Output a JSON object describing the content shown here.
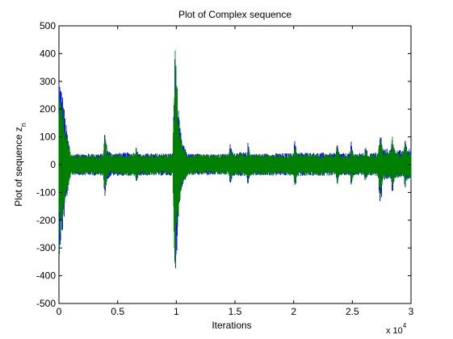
{
  "chart_data": {
    "type": "line",
    "title": "Plot of Complex sequence",
    "xlabel": "Iterations",
    "ylabel_main": "Plot of sequence z",
    "ylabel_subscript": "n",
    "x_exponent_base": "x 10",
    "x_exponent_power": "4",
    "xlim": [
      0,
      3
    ],
    "ylim": [
      -500,
      500
    ],
    "x_ticks": [
      {
        "value": 0,
        "label": "0"
      },
      {
        "value": 0.5,
        "label": "0.5"
      },
      {
        "value": 1,
        "label": "1"
      },
      {
        "value": 1.5,
        "label": "1.5"
      },
      {
        "value": 2,
        "label": "2"
      },
      {
        "value": 2.5,
        "label": "2.5"
      },
      {
        "value": 3,
        "label": "3"
      }
    ],
    "y_ticks": [
      {
        "value": 500,
        "label": "500"
      },
      {
        "value": 400,
        "label": "400"
      },
      {
        "value": 300,
        "label": "300"
      },
      {
        "value": 200,
        "label": "200"
      },
      {
        "value": 100,
        "label": "100"
      },
      {
        "value": 0,
        "label": "0"
      },
      {
        "value": -100,
        "label": "-100"
      },
      {
        "value": -200,
        "label": "-200"
      },
      {
        "value": -300,
        "label": "-300"
      },
      {
        "value": -400,
        "label": "-400"
      },
      {
        "value": -500,
        "label": "-500"
      }
    ],
    "grid": false,
    "series": [
      {
        "color": "#0000ff",
        "envelope": [
          [
            0,
            345,
            -330
          ],
          [
            0.03,
            260,
            -255
          ],
          [
            0.06,
            150,
            -140
          ],
          [
            0.1,
            40,
            -38
          ],
          [
            0.38,
            40,
            -40
          ],
          [
            0.39,
            130,
            -125
          ],
          [
            0.41,
            60,
            -55
          ],
          [
            0.45,
            42,
            -40
          ],
          [
            0.65,
            45,
            -42
          ],
          [
            0.66,
            75,
            -70
          ],
          [
            0.68,
            40,
            -40
          ],
          [
            0.97,
            42,
            -40
          ],
          [
            0.98,
            280,
            -270
          ],
          [
            0.99,
            430,
            -445
          ],
          [
            1.0,
            360,
            -350
          ],
          [
            1.02,
            180,
            -175
          ],
          [
            1.05,
            80,
            -78
          ],
          [
            1.1,
            40,
            -38
          ],
          [
            1.45,
            40,
            -38
          ],
          [
            1.46,
            85,
            -80
          ],
          [
            1.48,
            45,
            -42
          ],
          [
            1.6,
            45,
            -42
          ],
          [
            1.61,
            80,
            -78
          ],
          [
            1.63,
            40,
            -40
          ],
          [
            2.0,
            42,
            -40
          ],
          [
            2.01,
            100,
            -95
          ],
          [
            2.03,
            45,
            -42
          ],
          [
            2.36,
            42,
            -40
          ],
          [
            2.37,
            80,
            -78
          ],
          [
            2.39,
            42,
            -40
          ],
          [
            2.48,
            42,
            -40
          ],
          [
            2.49,
            85,
            -80
          ],
          [
            2.51,
            42,
            -40
          ],
          [
            2.6,
            42,
            -40
          ],
          [
            2.61,
            70,
            -65
          ],
          [
            2.63,
            42,
            -40
          ],
          [
            2.72,
            45,
            -42
          ],
          [
            2.74,
            120,
            -165
          ],
          [
            2.76,
            60,
            -55
          ],
          [
            2.83,
            55,
            -52
          ],
          [
            2.84,
            115,
            -112
          ],
          [
            2.86,
            55,
            -50
          ],
          [
            2.94,
            50,
            -48
          ],
          [
            2.95,
            105,
            -95
          ],
          [
            2.97,
            55,
            -50
          ],
          [
            3.0,
            60,
            -58
          ]
        ]
      },
      {
        "color": "#008000",
        "envelope": [
          [
            0,
            320,
            -315
          ],
          [
            0.03,
            240,
            -230
          ],
          [
            0.06,
            135,
            -125
          ],
          [
            0.1,
            38,
            -36
          ],
          [
            0.38,
            38,
            -38
          ],
          [
            0.39,
            120,
            -118
          ],
          [
            0.41,
            55,
            -52
          ],
          [
            0.45,
            40,
            -38
          ],
          [
            0.65,
            42,
            -40
          ],
          [
            0.66,
            70,
            -66
          ],
          [
            0.68,
            38,
            -38
          ],
          [
            0.97,
            40,
            -38
          ],
          [
            0.98,
            260,
            -255
          ],
          [
            0.99,
            425,
            -450
          ],
          [
            1.0,
            340,
            -330
          ],
          [
            1.02,
            170,
            -165
          ],
          [
            1.05,
            75,
            -72
          ],
          [
            1.1,
            38,
            -36
          ],
          [
            1.45,
            38,
            -36
          ],
          [
            1.46,
            80,
            -76
          ],
          [
            1.48,
            42,
            -40
          ],
          [
            1.6,
            42,
            -40
          ],
          [
            1.61,
            75,
            -72
          ],
          [
            1.63,
            38,
            -38
          ],
          [
            2.0,
            40,
            -38
          ],
          [
            2.01,
            95,
            -90
          ],
          [
            2.03,
            42,
            -40
          ],
          [
            2.36,
            40,
            -38
          ],
          [
            2.37,
            76,
            -72
          ],
          [
            2.39,
            40,
            -38
          ],
          [
            2.48,
            40,
            -38
          ],
          [
            2.49,
            80,
            -76
          ],
          [
            2.51,
            40,
            -38
          ],
          [
            2.6,
            40,
            -38
          ],
          [
            2.61,
            66,
            -62
          ],
          [
            2.63,
            40,
            -38
          ],
          [
            2.72,
            42,
            -40
          ],
          [
            2.74,
            110,
            -150
          ],
          [
            2.76,
            56,
            -52
          ],
          [
            2.83,
            52,
            -50
          ],
          [
            2.84,
            108,
            -105
          ],
          [
            2.86,
            52,
            -48
          ],
          [
            2.94,
            48,
            -45
          ],
          [
            2.95,
            98,
            -90
          ],
          [
            2.97,
            52,
            -48
          ],
          [
            3.0,
            56,
            -54
          ]
        ]
      }
    ]
  }
}
